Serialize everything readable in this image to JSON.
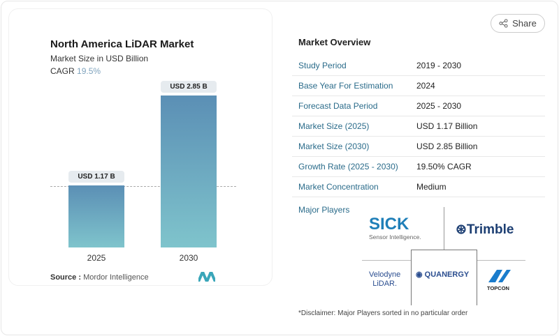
{
  "share_label": "Share",
  "chart_data": {
    "type": "bar",
    "title": "North America LiDAR Market",
    "subtitle": "Market Size in USD Billion",
    "cagr_label": "CAGR",
    "cagr_value": "19.5%",
    "categories": [
      "2025",
      "2030"
    ],
    "values": [
      1.17,
      2.85
    ],
    "data_labels": [
      "USD 1.17 B",
      "USD 2.85 B"
    ],
    "colors": {
      "bar_top": "#5b8fb5",
      "bar_bottom": "#7fc4cc"
    }
  },
  "source": {
    "label": "Source :",
    "value": "Mordor Intelligence"
  },
  "overview": {
    "title": "Market Overview",
    "rows": [
      {
        "label": "Study Period",
        "value": "2019 - 2030"
      },
      {
        "label": "Base Year For Estimation",
        "value": "2024"
      },
      {
        "label": "Forecast Data Period",
        "value": "2025 - 2030"
      },
      {
        "label": "Market Size (2025)",
        "value": "USD 1.17 Billion"
      },
      {
        "label": "Market Size (2030)",
        "value": "USD 2.85 Billion"
      },
      {
        "label": "Growth Rate (2025 - 2030)",
        "value": "19.50% CAGR"
      },
      {
        "label": "Market Concentration",
        "value": "Medium"
      }
    ],
    "major_players_label": "Major Players",
    "players": [
      "SICK Sensor Intelligence.",
      "Trimble",
      "Velodyne LiDAR",
      "QUANERGY",
      "TOPCON"
    ]
  },
  "disclaimer": "*Disclaimer: Major Players sorted in no particular order"
}
